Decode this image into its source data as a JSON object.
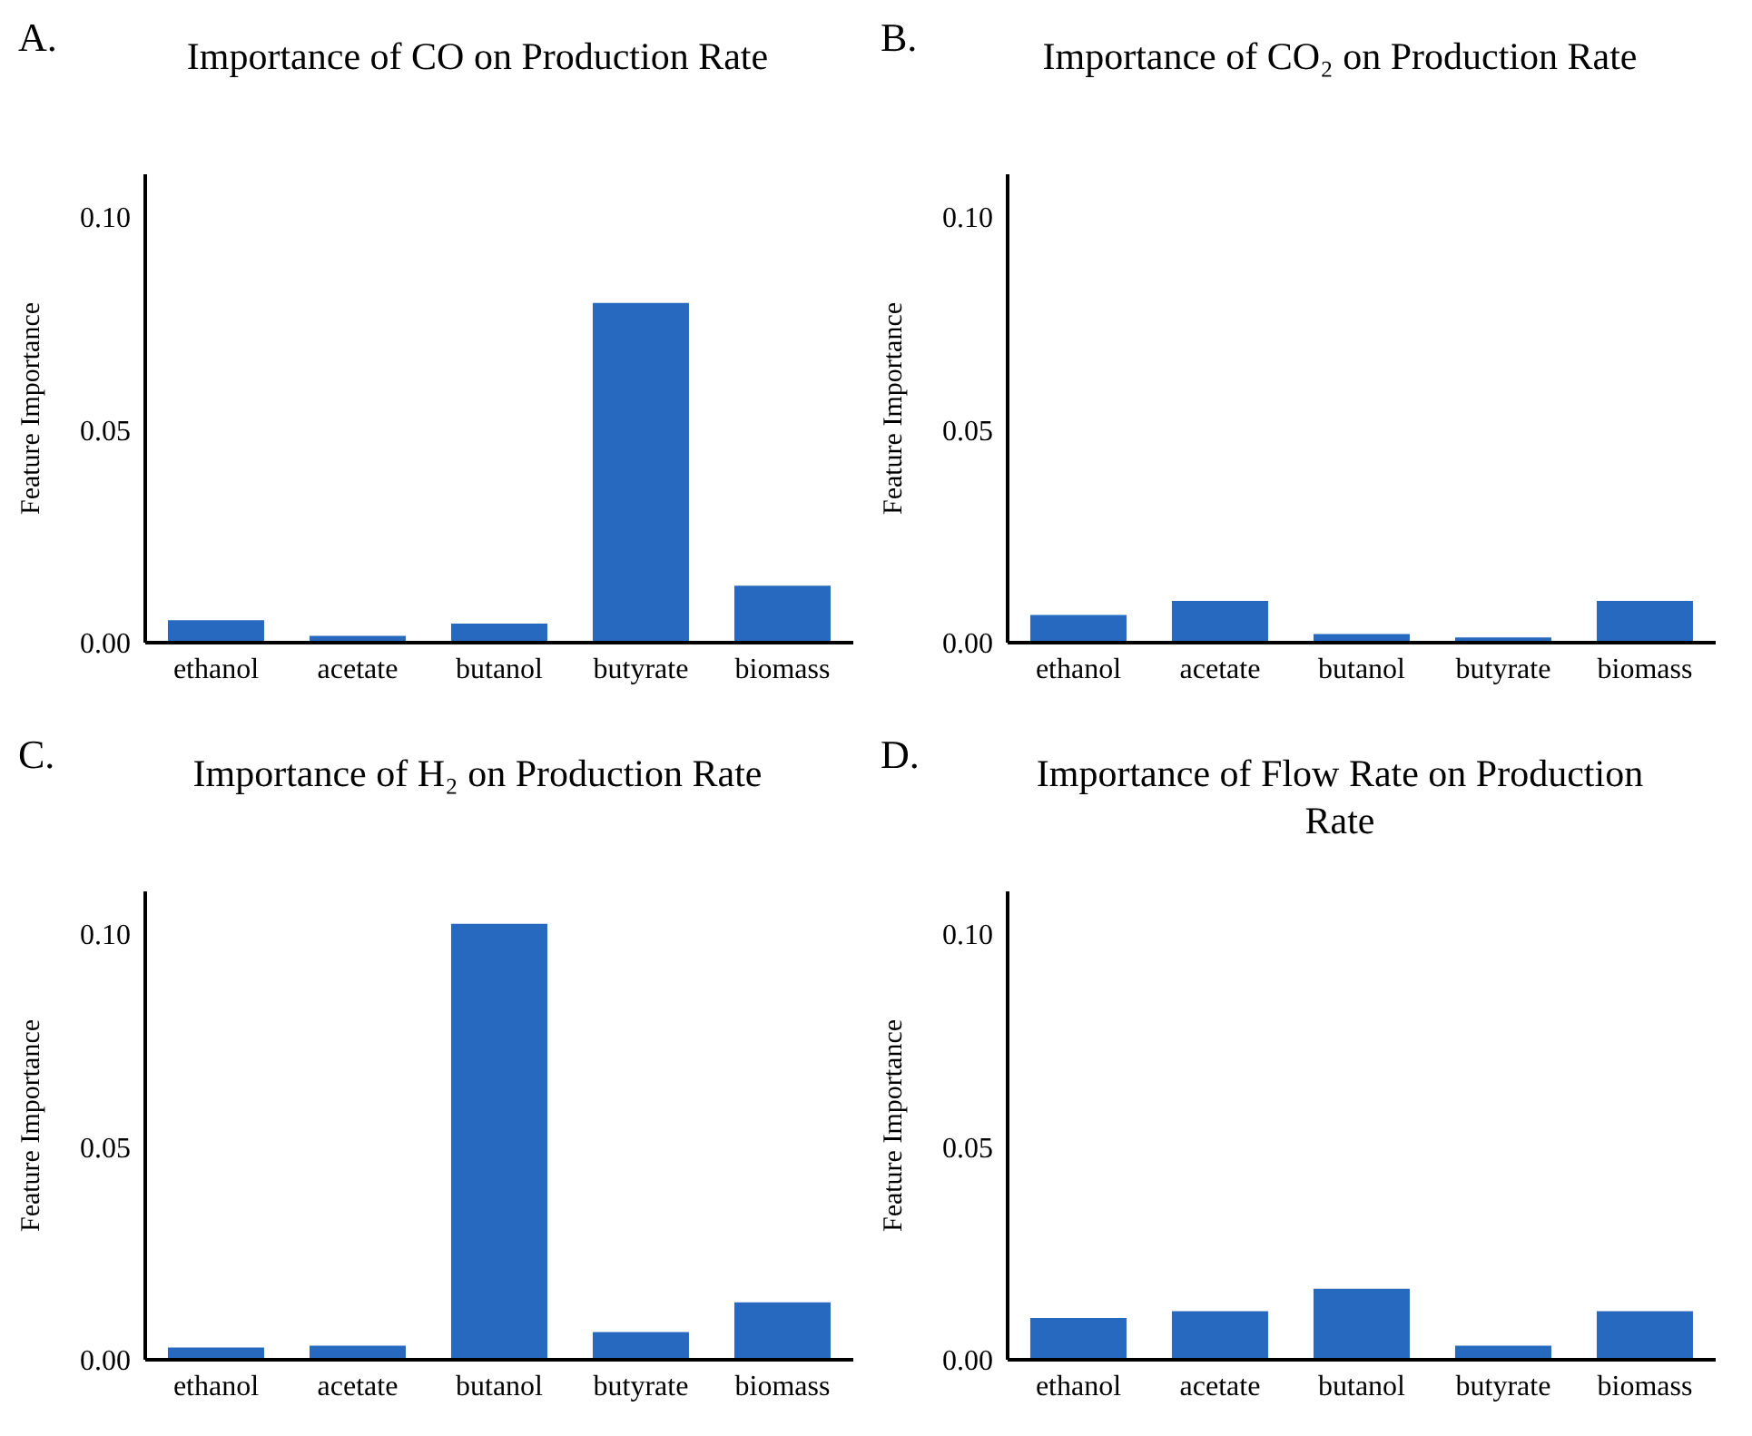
{
  "chart_data": [
    {
      "type": "bar",
      "title": "Importance of CO on Production Rate",
      "annotations": [
        "A."
      ],
      "ylabel": "Feature Importance",
      "categories": [
        "ethanol",
        "acetate",
        "butanol",
        "butyrate",
        "biomass"
      ],
      "values": [
        0.0053,
        0.0016,
        0.0045,
        0.0798,
        0.0134
      ],
      "color": "#2769be",
      "ylim": [
        0,
        0.11
      ],
      "yticks": [
        {
          "value": 0,
          "label": "0.00"
        },
        {
          "value": 0.05,
          "label": "0.05"
        },
        {
          "value": 0.1,
          "label": "0.10"
        }
      ],
      "grid": false
    },
    {
      "type": "bar",
      "title": "Importance of CO₂ on Production Rate",
      "annotations": [
        "B."
      ],
      "ylabel": "Feature Importance",
      "categories": [
        "ethanol",
        "acetate",
        "butanol",
        "butyrate",
        "biomass"
      ],
      "values": [
        0.0065,
        0.0098,
        0.002,
        0.0012,
        0.0098
      ],
      "color": "#2769be",
      "ylim": [
        0,
        0.11
      ],
      "yticks": [
        {
          "value": 0,
          "label": "0.00"
        },
        {
          "value": 0.05,
          "label": "0.05"
        },
        {
          "value": 0.1,
          "label": "0.10"
        }
      ],
      "grid": false
    },
    {
      "type": "bar",
      "title": "Importance of H₂ on Production Rate",
      "annotations": [
        "C."
      ],
      "ylabel": "Feature Importance",
      "categories": [
        "ethanol",
        "acetate",
        "butanol",
        "butyrate",
        "biomass"
      ],
      "values": [
        0.0029,
        0.0033,
        0.1024,
        0.0065,
        0.0135
      ],
      "color": "#2769be",
      "ylim": [
        0,
        0.11
      ],
      "yticks": [
        {
          "value": 0,
          "label": "0.00"
        },
        {
          "value": 0.05,
          "label": "0.05"
        },
        {
          "value": 0.1,
          "label": "0.10"
        }
      ],
      "grid": false
    },
    {
      "type": "bar",
      "title": "Importance of Flow Rate on Production Rate",
      "annotations": [
        "D."
      ],
      "ylabel": "Feature Importance",
      "categories": [
        "ethanol",
        "acetate",
        "butanol",
        "butyrate",
        "biomass"
      ],
      "values": [
        0.0098,
        0.0114,
        0.0167,
        0.0033,
        0.0114
      ],
      "color": "#2769be",
      "ylim": [
        0,
        0.11
      ],
      "yticks": [
        {
          "value": 0,
          "label": "0.00"
        },
        {
          "value": 0.05,
          "label": "0.05"
        },
        {
          "value": 0.1,
          "label": "0.10"
        }
      ],
      "grid": false
    }
  ]
}
